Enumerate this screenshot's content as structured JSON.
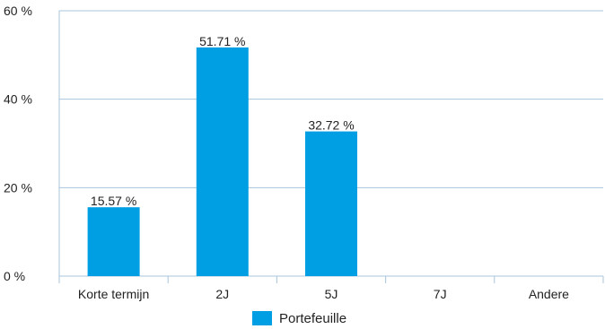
{
  "chart_data": {
    "type": "bar",
    "categories": [
      "Korte termijn",
      "2J",
      "5J",
      "7J",
      "Andere"
    ],
    "series": [
      {
        "name": "Portefeuille",
        "values": [
          15.57,
          51.71,
          32.72,
          0,
          0
        ],
        "data_labels": [
          "15.57 %",
          "51.71 %",
          "32.72 %",
          "",
          ""
        ]
      }
    ],
    "yticks": [
      0,
      20,
      40,
      60
    ],
    "ytick_labels": [
      "0 %",
      "20 %",
      "40 %",
      "60 %"
    ],
    "ylim": [
      0,
      60
    ],
    "grid": true,
    "legend_position": "bottom",
    "bar_color": "#009fe3",
    "grid_color": "#a9c4de"
  }
}
